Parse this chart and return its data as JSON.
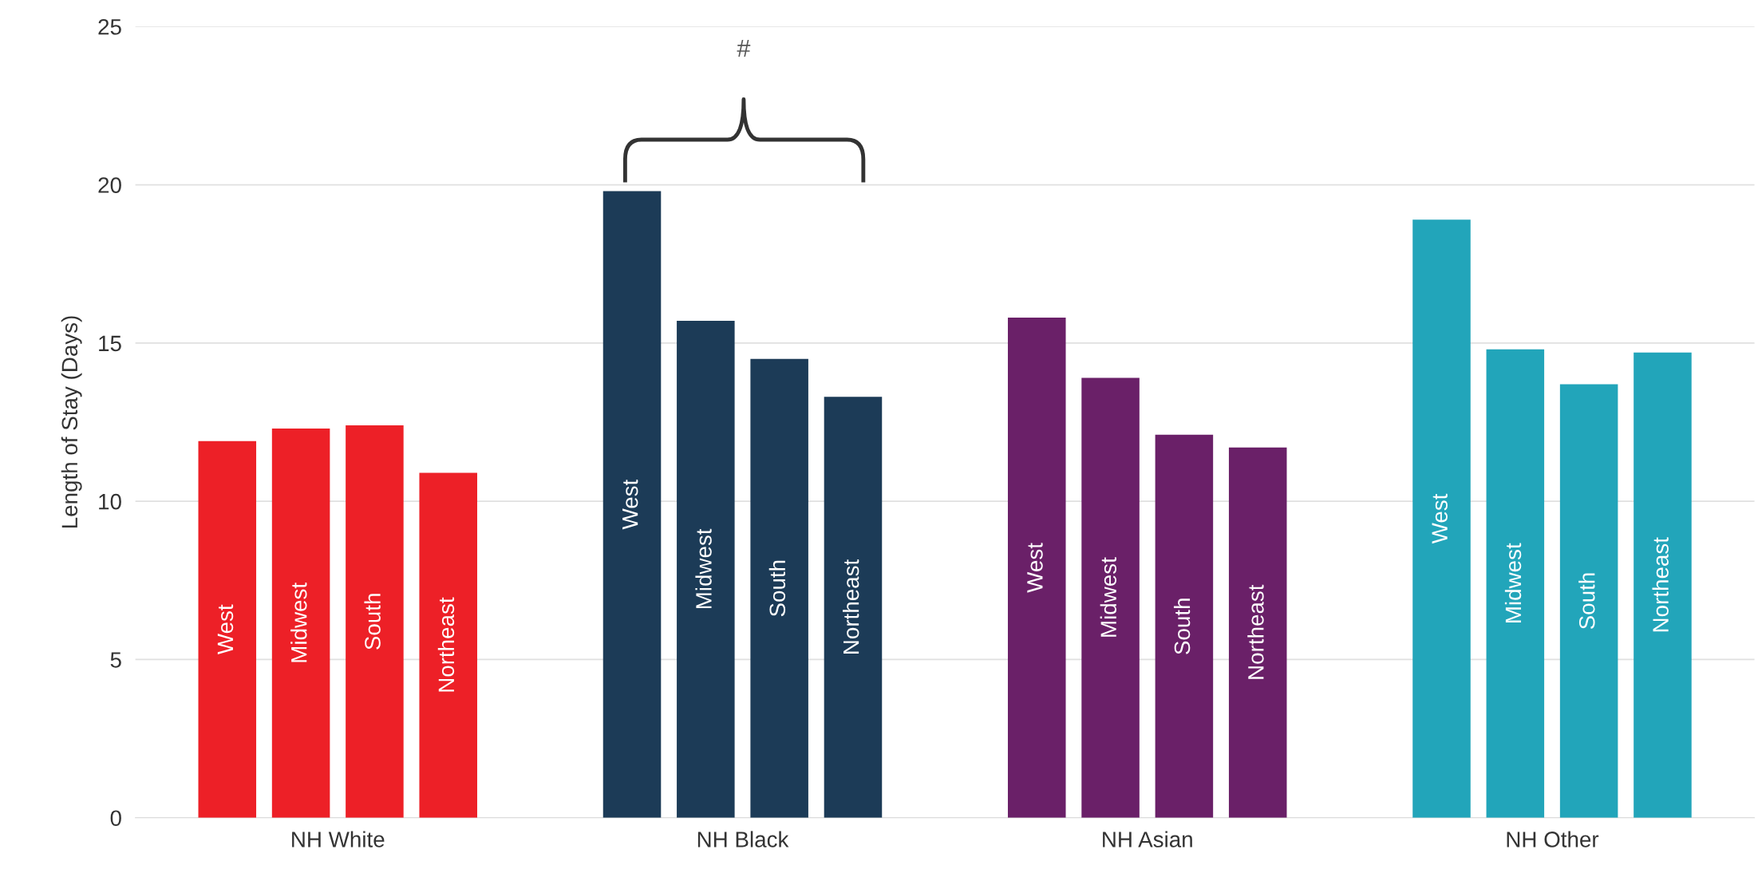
{
  "chart_data": {
    "type": "bar",
    "ylabel": "Length of Stay (Days)",
    "categories": [
      "NH White",
      "NH Black",
      "NH Asian",
      "NH Other"
    ],
    "series": [
      {
        "name": "West",
        "colors": [
          "#ed2027",
          "#1c3b57",
          "#6a2068",
          "#22a5ba"
        ],
        "values": [
          11.9,
          19.8,
          15.8,
          18.9
        ]
      },
      {
        "name": "Midwest",
        "colors": [
          "#ed2027",
          "#1c3b57",
          "#6a2068",
          "#22a5ba"
        ],
        "values": [
          12.3,
          15.7,
          13.9,
          14.8
        ]
      },
      {
        "name": "South",
        "colors": [
          "#ed2027",
          "#1c3b57",
          "#6a2068",
          "#22a5ba"
        ],
        "values": [
          12.4,
          14.5,
          12.1,
          13.7
        ]
      },
      {
        "name": "Northeast",
        "colors": [
          "#ed2027",
          "#1c3b57",
          "#6a2068",
          "#22a5ba"
        ],
        "values": [
          10.9,
          13.3,
          11.7,
          14.7
        ]
      }
    ],
    "ylim": [
      0,
      25
    ],
    "yticks": [
      0,
      5,
      10,
      15,
      20,
      25
    ],
    "grid": "y",
    "annotations": [
      "#"
    ]
  }
}
